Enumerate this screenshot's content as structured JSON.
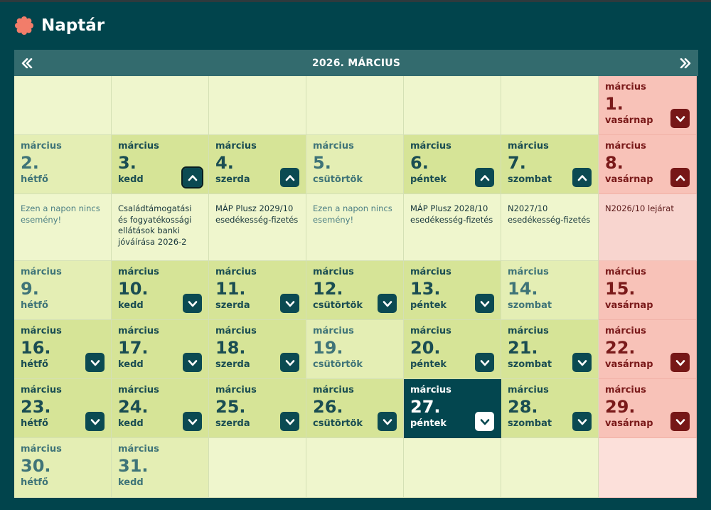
{
  "app": {
    "title": "Naptár",
    "logo_icon": "flower-badge-icon",
    "accent": "#f27d6a"
  },
  "calendar": {
    "month_title": "2026. MÁRCIUS",
    "prev_icon": "double-chevron-left-icon",
    "next_icon": "double-chevron-right-icon",
    "today": 27,
    "weeks": [
      [
        null,
        null,
        null,
        null,
        null,
        null,
        {
          "month": "március",
          "day": "1.",
          "weekday": "vasárnap",
          "type": "sun",
          "toggle": "down"
        }
      ],
      [
        {
          "month": "március",
          "day": "2.",
          "weekday": "hétfő",
          "type": "noevent",
          "toggle": null
        },
        {
          "month": "március",
          "day": "3.",
          "weekday": "kedd",
          "type": "hasevent",
          "toggle": "up",
          "focused": true
        },
        {
          "month": "március",
          "day": "4.",
          "weekday": "szerda",
          "type": "hasevent",
          "toggle": "up"
        },
        {
          "month": "március",
          "day": "5.",
          "weekday": "csütörtök",
          "type": "noevent",
          "toggle": null
        },
        {
          "month": "március",
          "day": "6.",
          "weekday": "péntek",
          "type": "hasevent",
          "toggle": "up"
        },
        {
          "month": "március",
          "day": "7.",
          "weekday": "szombat",
          "type": "hasevent",
          "toggle": "up"
        },
        {
          "month": "március",
          "day": "8.",
          "weekday": "vasárnap",
          "type": "sun",
          "toggle": "up"
        }
      ],
      [
        {
          "month": "március",
          "day": "9.",
          "weekday": "hétfő",
          "type": "noevent",
          "toggle": null
        },
        {
          "month": "március",
          "day": "10.",
          "weekday": "kedd",
          "type": "hasevent",
          "toggle": "down"
        },
        {
          "month": "március",
          "day": "11.",
          "weekday": "szerda",
          "type": "hasevent",
          "toggle": "down"
        },
        {
          "month": "március",
          "day": "12.",
          "weekday": "csütörtök",
          "type": "hasevent",
          "toggle": "down"
        },
        {
          "month": "március",
          "day": "13.",
          "weekday": "péntek",
          "type": "hasevent",
          "toggle": "down"
        },
        {
          "month": "március",
          "day": "14.",
          "weekday": "szombat",
          "type": "noevent",
          "toggle": null
        },
        {
          "month": "március",
          "day": "15.",
          "weekday": "vasárnap",
          "type": "sun",
          "toggle": null
        }
      ],
      [
        {
          "month": "március",
          "day": "16.",
          "weekday": "hétfő",
          "type": "hasevent",
          "toggle": "down"
        },
        {
          "month": "március",
          "day": "17.",
          "weekday": "kedd",
          "type": "hasevent",
          "toggle": "down"
        },
        {
          "month": "március",
          "day": "18.",
          "weekday": "szerda",
          "type": "hasevent",
          "toggle": "down"
        },
        {
          "month": "március",
          "day": "19.",
          "weekday": "csütörtök",
          "type": "noevent",
          "toggle": null
        },
        {
          "month": "március",
          "day": "20.",
          "weekday": "péntek",
          "type": "hasevent",
          "toggle": "down"
        },
        {
          "month": "március",
          "day": "21.",
          "weekday": "szombat",
          "type": "hasevent",
          "toggle": "down"
        },
        {
          "month": "március",
          "day": "22.",
          "weekday": "vasárnap",
          "type": "sun",
          "toggle": "down"
        }
      ],
      [
        {
          "month": "március",
          "day": "23.",
          "weekday": "hétfő",
          "type": "hasevent",
          "toggle": "down"
        },
        {
          "month": "március",
          "day": "24.",
          "weekday": "kedd",
          "type": "hasevent",
          "toggle": "down"
        },
        {
          "month": "március",
          "day": "25.",
          "weekday": "szerda",
          "type": "hasevent",
          "toggle": "down"
        },
        {
          "month": "március",
          "day": "26.",
          "weekday": "csütörtök",
          "type": "hasevent",
          "toggle": "down"
        },
        {
          "month": "március",
          "day": "27.",
          "weekday": "péntek",
          "type": "today",
          "toggle": "down"
        },
        {
          "month": "március",
          "day": "28.",
          "weekday": "szombat",
          "type": "hasevent",
          "toggle": "down"
        },
        {
          "month": "március",
          "day": "29.",
          "weekday": "vasárnap",
          "type": "sun",
          "toggle": "down"
        }
      ],
      [
        {
          "month": "március",
          "day": "30.",
          "weekday": "hétfő",
          "type": "noevent",
          "toggle": null
        },
        {
          "month": "március",
          "day": "31.",
          "weekday": "kedd",
          "type": "noevent",
          "toggle": null
        },
        null,
        null,
        null,
        null,
        null
      ]
    ],
    "expanded_week_events": [
      {
        "text": "Ezen a napon nincs esemény!",
        "kind": "none"
      },
      {
        "text": "Családtámogatási és fogyatékossági ellátások banki jóváírása 2026-2",
        "kind": "event"
      },
      {
        "text": "MÁP Plusz 2029/10 esedékesség-fizetés",
        "kind": "event"
      },
      {
        "text": "Ezen a napon nincs esemény!",
        "kind": "none"
      },
      {
        "text": "MÁP Plusz 2028/10 esedékesség-fizetés",
        "kind": "event"
      },
      {
        "text": "N2027/10 esedékesség-fizetés",
        "kind": "event"
      },
      {
        "text": "N2026/10 lejárat",
        "kind": "sun"
      }
    ]
  }
}
